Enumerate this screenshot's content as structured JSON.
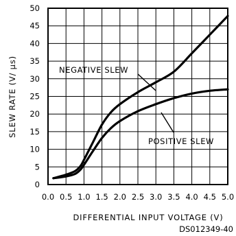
{
  "chart_data": {
    "type": "line",
    "xlabel": "DIFFERENTIAL INPUT VOLTAGE (V)",
    "ylabel": "SLEW RATE (V/ μs)",
    "xlim": [
      0,
      5
    ],
    "ylim": [
      0,
      50
    ],
    "x_ticks": [
      "0.0",
      "0.5",
      "1.0",
      "1.5",
      "2.0",
      "2.5",
      "3.0",
      "3.5",
      "4.0",
      "4.5",
      "5.0"
    ],
    "y_ticks": [
      "0",
      "5",
      "10",
      "15",
      "20",
      "25",
      "30",
      "35",
      "40",
      "45",
      "50"
    ],
    "grid": true,
    "series": [
      {
        "name": "NEGATIVE SLEW",
        "x": [
          0.15,
          0.5,
          0.75,
          0.9,
          1.0,
          1.25,
          1.5,
          1.75,
          2.0,
          2.5,
          3.0,
          3.5,
          4.0,
          4.5,
          5.0
        ],
        "y": [
          1.8,
          2.8,
          3.8,
          5.2,
          7.0,
          12.0,
          17.0,
          20.5,
          22.8,
          26.2,
          29.0,
          32.0,
          37.2,
          42.5,
          47.8
        ]
      },
      {
        "name": "POSITIVE SLEW",
        "x": [
          0.15,
          0.5,
          0.75,
          0.9,
          1.0,
          1.25,
          1.5,
          1.75,
          2.0,
          2.5,
          3.0,
          3.5,
          4.0,
          4.5,
          5.0
        ],
        "y": [
          1.8,
          2.3,
          3.0,
          4.2,
          5.6,
          9.5,
          13.2,
          16.0,
          18.0,
          20.8,
          22.8,
          24.5,
          25.8,
          26.6,
          27.0
        ]
      }
    ],
    "annotations": [
      "NEGATIVE SLEW",
      "POSITIVE SLEW"
    ],
    "figure_code": "DS012349-40"
  }
}
